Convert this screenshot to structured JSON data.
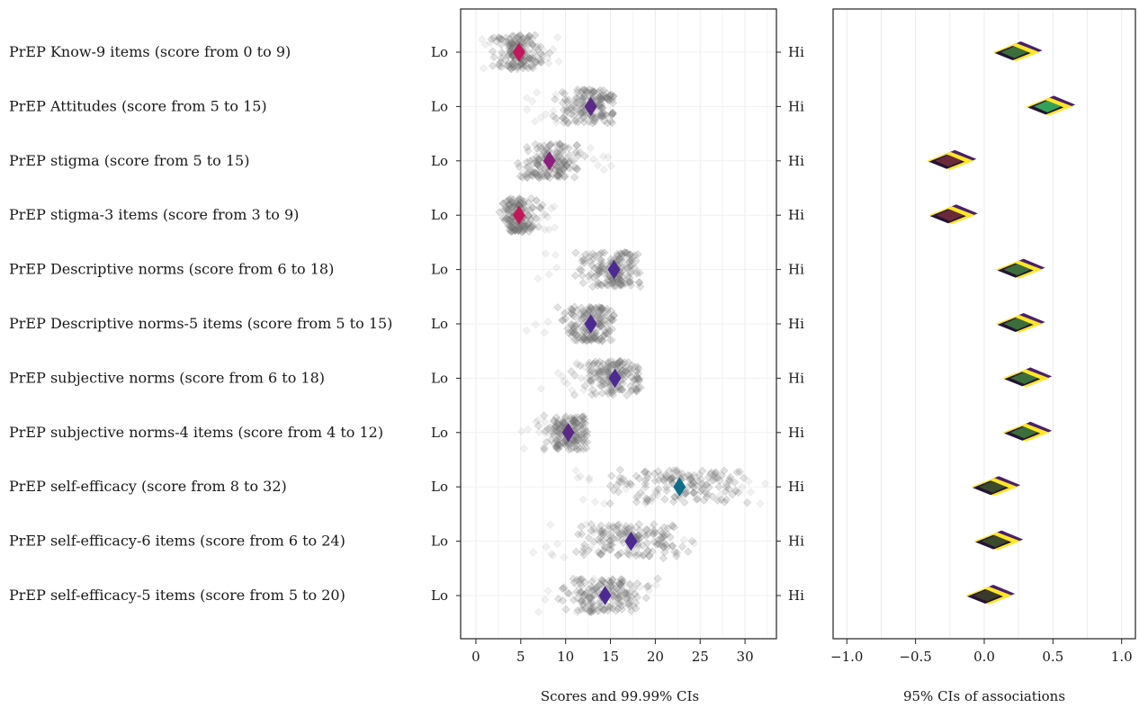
{
  "chart_data": [
    {
      "type": "scatter",
      "xlabel": "Scores and 99.99% CIs",
      "xlim": [
        -1.7,
        33.5
      ],
      "xticks": [
        0,
        5,
        10,
        15,
        20,
        25,
        30
      ],
      "xtick_labels": [
        "0",
        "5",
        "10",
        "15",
        "20",
        "25",
        "30"
      ],
      "grid": true,
      "low_label": "Lo",
      "high_label": "Hi",
      "rows": [
        {
          "label": "PrEP Know-9 items (score from 0 to 9)",
          "min": 0,
          "max": 9,
          "mean": 4.8,
          "color": "#c2185b"
        },
        {
          "label": "PrEP Attitudes (score from 5 to 15)",
          "min": 5,
          "max": 15,
          "mean": 12.8,
          "color": "#5b2a86"
        },
        {
          "label": "PrEP stigma (score from 5 to 15)",
          "min": 5,
          "max": 15,
          "mean": 8.2,
          "color": "#8e1f7e"
        },
        {
          "label": "PrEP stigma-3 items (score from 3 to 9)",
          "min": 3,
          "max": 9,
          "mean": 4.8,
          "color": "#c2185b"
        },
        {
          "label": "PrEP Descriptive norms (score from 6 to 18)",
          "min": 6,
          "max": 18,
          "mean": 15.4,
          "color": "#4b2a91"
        },
        {
          "label": "PrEP Descriptive norms-5 items (score from 5 to 15)",
          "min": 5,
          "max": 15,
          "mean": 12.8,
          "color": "#4b2a91"
        },
        {
          "label": "PrEP subjective norms (score from 6 to 18)",
          "min": 6,
          "max": 18,
          "mean": 15.5,
          "color": "#4b2a91"
        },
        {
          "label": "PrEP subjective norms-4 items (score from 4 to 12)",
          "min": 4,
          "max": 12,
          "mean": 10.3,
          "color": "#5b2a86"
        },
        {
          "label": "PrEP self-efficacy (score from 8 to 32)",
          "min": 8,
          "max": 32,
          "mean": 22.7,
          "color": "#0f6e8a"
        },
        {
          "label": "PrEP self-efficacy-6 items (score from 6 to 24)",
          "min": 6,
          "max": 24,
          "mean": 17.3,
          "color": "#4b2a91"
        },
        {
          "label": "PrEP self-efficacy-5 items (score from 5 to 20)",
          "min": 5,
          "max": 20,
          "mean": 14.4,
          "color": "#4b2a91"
        }
      ]
    },
    {
      "type": "scatter",
      "xlabel": "95% CIs of associations",
      "xlim": [
        -1.1,
        1.1
      ],
      "xticks": [
        -1.0,
        -0.5,
        0.0,
        0.5,
        1.0
      ],
      "xtick_labels": [
        "−1.0",
        "−0.5",
        "0.0",
        "0.5",
        "1.0"
      ],
      "grid": true,
      "rows": [
        {
          "label": "PrEP Know-9 items (score from 0 to 9)",
          "center": 0.22,
          "outer_color": "#fde725",
          "fill_color": "#3b6e3b"
        },
        {
          "label": "PrEP Attitudes (score from 5 to 15)",
          "center": 0.46,
          "outer_color": "#fde725",
          "fill_color": "#35a05a"
        },
        {
          "label": "PrEP stigma (score from 5 to 15)",
          "center": -0.26,
          "outer_color": "#fde725",
          "fill_color": "#6a2a3a"
        },
        {
          "label": "PrEP stigma-3 items (score from 3 to 9)",
          "center": -0.25,
          "outer_color": "#fde725",
          "fill_color": "#6a2a3a"
        },
        {
          "label": "PrEP Descriptive norms (score from 6 to 18)",
          "center": 0.24,
          "outer_color": "#fde725",
          "fill_color": "#3b6e3b"
        },
        {
          "label": "PrEP Descriptive norms-5 items (score from 5 to 15)",
          "center": 0.24,
          "outer_color": "#fde725",
          "fill_color": "#3b6e3b"
        },
        {
          "label": "PrEP subjective norms (score from 6 to 18)",
          "center": 0.29,
          "outer_color": "#fde725",
          "fill_color": "#3b6e3b"
        },
        {
          "label": "PrEP subjective norms-4 items (score from 4 to 12)",
          "center": 0.29,
          "outer_color": "#fde725",
          "fill_color": "#3b6e3b"
        },
        {
          "label": "PrEP self-efficacy (score from 8 to 32)",
          "center": 0.06,
          "outer_color": "#fde725",
          "fill_color": "#3a4a2a"
        },
        {
          "label": "PrEP self-efficacy-6 items (score from 6 to 24)",
          "center": 0.08,
          "outer_color": "#fde725",
          "fill_color": "#3a4a2a"
        },
        {
          "label": "PrEP self-efficacy-5 items (score from 5 to 20)",
          "center": 0.02,
          "outer_color": "#fde725",
          "fill_color": "#3a3a2a"
        }
      ]
    }
  ]
}
